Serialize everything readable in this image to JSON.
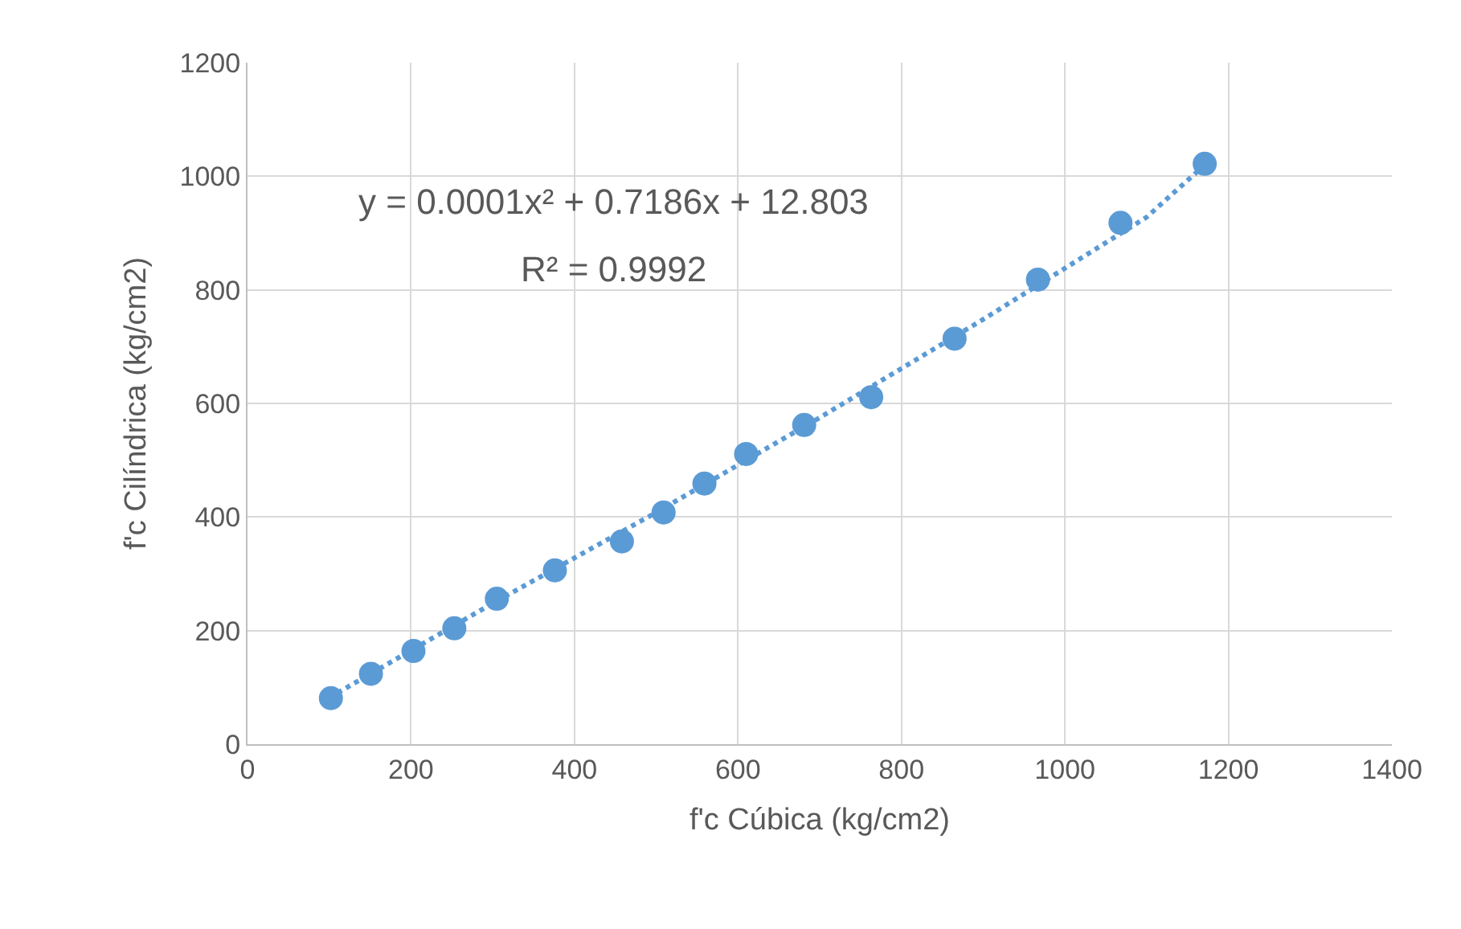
{
  "chart_data": {
    "type": "scatter",
    "xlabel": "f'c Cúbica (kg/cm2)",
    "ylabel": "f'c Cilíndrica (kg/cm2)",
    "x": [
      102,
      151,
      203,
      253,
      305,
      376,
      458,
      509,
      559,
      610,
      681,
      763,
      865,
      967,
      1068,
      1171
    ],
    "series": [
      {
        "color": "#5b9bd5",
        "values": [
          81,
          124,
          164,
          204,
          256,
          306,
          357,
          408,
          459,
          511,
          562,
          611,
          714,
          818,
          918,
          1022
        ],
        "marker": "circle"
      },
      {
        "type": "line",
        "color": "#5b9bd5",
        "line_style": "dotted",
        "marker": "none",
        "x": [
          100,
          300,
          500,
          700,
          900,
          1100,
          1171
        ],
        "values": [
          82,
          248,
          408,
          575,
          748,
          928,
          1020
        ]
      }
    ],
    "annotations": [
      "y = 0.0001x² + 0.7186x + 12.803",
      "R² = 0.9992"
    ],
    "xlim": [
      0,
      1400
    ],
    "xticks": [
      0,
      200,
      400,
      600,
      800,
      1000,
      1200,
      1400
    ],
    "ylim": [
      0,
      1200
    ],
    "yticks": [
      0,
      200,
      400,
      600,
      800,
      1000,
      1200
    ],
    "grid": true
  }
}
